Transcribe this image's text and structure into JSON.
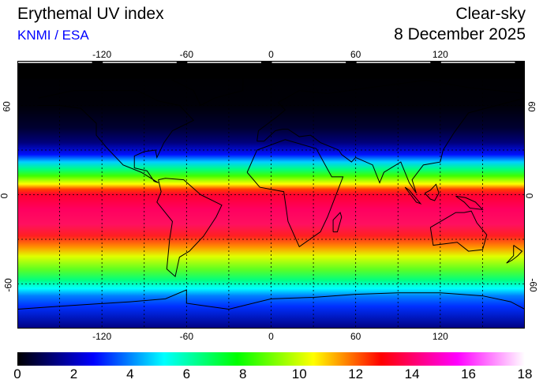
{
  "header": {
    "title": "Erythemal UV index",
    "source": "KNMI / ESA",
    "mode": "Clear-sky",
    "date": "8 December 2025"
  },
  "map": {
    "projection": "equirectangular",
    "lon_range": [
      -180,
      180
    ],
    "lat_range": [
      -90,
      90
    ],
    "lon_ticks": [
      "-120",
      "-60",
      "0",
      "60",
      "120"
    ],
    "lat_ticks": [
      "60",
      "0",
      "-60"
    ],
    "grid": "dotted, every 30 degrees",
    "field": "Erythemal UV index"
  },
  "colorbar": {
    "ticks": [
      "0",
      "2",
      "4",
      "6",
      "8",
      "10",
      "12",
      "14",
      "16",
      "18"
    ],
    "range": [
      0,
      18
    ],
    "stops": [
      {
        "value": 0,
        "color": "#000000"
      },
      {
        "value": 2.7,
        "color": "#0000ff"
      },
      {
        "value": 5.2,
        "color": "#00ffff"
      },
      {
        "value": 7.8,
        "color": "#00ff00"
      },
      {
        "value": 10.5,
        "color": "#ffff00"
      },
      {
        "value": 12.9,
        "color": "#ff0000"
      },
      {
        "value": 15.6,
        "color": "#ff00ff"
      },
      {
        "value": 18,
        "color": "#ffffff"
      }
    ]
  }
}
